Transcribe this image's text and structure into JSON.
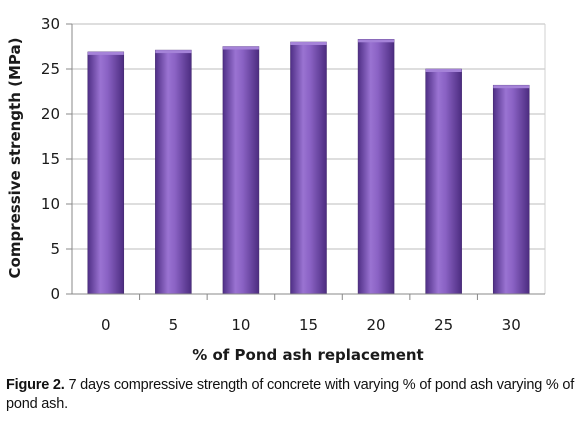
{
  "chart_data": {
    "type": "bar",
    "categories": [
      "0",
      "5",
      "10",
      "15",
      "20",
      "25",
      "30"
    ],
    "values": [
      26.9,
      27.1,
      27.5,
      28.0,
      28.3,
      25.0,
      23.2
    ],
    "title": "",
    "xlabel": "% of Pond ash replacement",
    "ylabel": "Compressive strength (MPa)",
    "ylim": [
      0,
      30
    ],
    "yticks": [
      0,
      5,
      10,
      15,
      20,
      25,
      30
    ],
    "grid": true,
    "bar_color": "#7a52b3"
  },
  "caption": {
    "label": "Figure 2.",
    "text": " 7 days compressive strength of concrete with varying % of pond ash varying % of pond ash."
  }
}
